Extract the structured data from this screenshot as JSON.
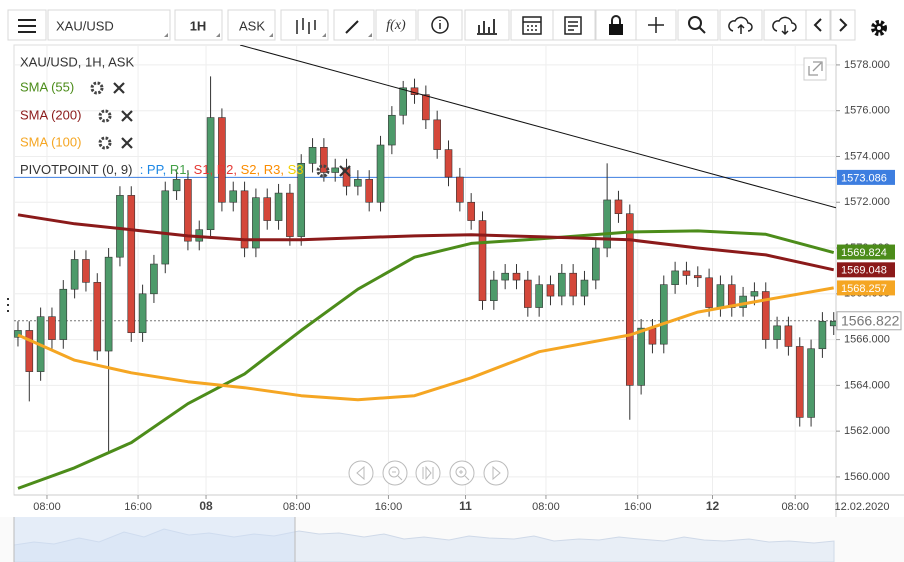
{
  "toolbar": {
    "symbol": "XAU/USD",
    "interval": "1H",
    "price_side": "ASK",
    "fx": "f(x)"
  },
  "legend": {
    "header": "XAU/USD, 1H, ASK",
    "pivot": "PIVOTPOINT (0, 9)",
    "pivot_levels": [
      {
        "text": ": PP,",
        "color": "#1e88e5"
      },
      {
        "text": " R1,",
        "color": "#43a047"
      },
      {
        "text": " S1,",
        "color": "#e53935"
      },
      {
        "text": " R2,",
        "color": "#e53935"
      },
      {
        "text": " S2,",
        "color": "#fb8c00"
      },
      {
        "text": " R3,",
        "color": "#fb8c00"
      },
      {
        "text": " S3",
        "color": "#f2d000"
      }
    ]
  },
  "chart_data": {
    "type": "candlestick",
    "up_color": "#4d9a6a",
    "down_color": "#d4473a",
    "x": [
      0,
      1,
      2,
      3,
      4,
      5,
      6,
      7,
      8,
      9,
      10,
      11,
      12,
      13,
      14,
      15,
      16,
      17,
      18,
      19,
      20,
      21,
      22,
      23,
      24,
      25,
      26,
      27,
      28,
      29,
      30,
      31,
      32,
      33,
      34,
      35,
      36,
      37,
      38,
      39,
      40,
      41,
      42,
      43,
      44,
      45,
      46,
      47,
      48,
      49,
      50,
      51,
      52,
      53,
      54,
      55,
      56,
      57,
      58,
      59,
      60,
      61,
      62,
      63,
      64,
      65,
      66,
      67,
      68,
      69,
      70,
      71,
      72
    ],
    "open": [
      1566.1,
      1566.4,
      1564.6,
      1567.0,
      1566.0,
      1568.2,
      1569.5,
      1568.5,
      1565.5,
      1569.6,
      1572.3,
      1566.3,
      1568.0,
      1569.3,
      1572.5,
      1573.0,
      1570.3,
      1570.8,
      1575.7,
      1572.0,
      1572.5,
      1570.0,
      1572.2,
      1571.2,
      1572.4,
      1570.5,
      1573.7,
      1574.4,
      1573.3,
      1573.5,
      1572.7,
      1573.0,
      1572.0,
      1574.5,
      1575.8,
      1577.0,
      1576.7,
      1575.6,
      1574.3,
      1573.1,
      1572.0,
      1571.2,
      1567.7,
      1568.6,
      1568.9,
      1568.6,
      1567.4,
      1568.4,
      1567.9,
      1568.9,
      1567.9,
      1568.6,
      1570.0,
      1572.1,
      1571.5,
      1564.0,
      1566.5,
      1565.8,
      1568.4,
      1569.0,
      1568.8,
      1568.7,
      1567.4,
      1568.4,
      1567.4,
      1567.9,
      1568.1,
      1566.0,
      1566.6,
      1565.7,
      1562.6,
      1565.6,
      1566.6
    ],
    "high": [
      1566.8,
      1566.8,
      1567.4,
      1567.4,
      1568.6,
      1569.9,
      1569.9,
      1568.9,
      1570.0,
      1572.7,
      1572.7,
      1568.4,
      1569.7,
      1572.9,
      1573.4,
      1573.4,
      1571.2,
      1577.5,
      1576.1,
      1572.9,
      1572.9,
      1572.6,
      1572.6,
      1572.8,
      1572.8,
      1574.1,
      1574.8,
      1574.8,
      1573.9,
      1573.9,
      1573.4,
      1573.4,
      1574.9,
      1576.2,
      1577.3,
      1577.4,
      1577.1,
      1576.0,
      1574.7,
      1573.5,
      1572.4,
      1571.6,
      1569.0,
      1569.3,
      1569.3,
      1569.0,
      1568.8,
      1568.8,
      1569.3,
      1569.3,
      1569.0,
      1570.4,
      1573.7,
      1572.5,
      1571.9,
      1566.9,
      1566.9,
      1568.8,
      1569.4,
      1569.4,
      1569.2,
      1569.1,
      1568.8,
      1568.8,
      1568.3,
      1568.5,
      1568.5,
      1567.0,
      1567.0,
      1566.1,
      1566.0,
      1567.2,
      1567.2
    ],
    "low": [
      1565.7,
      1563.3,
      1564.2,
      1565.6,
      1565.6,
      1567.8,
      1568.1,
      1565.1,
      1561.0,
      1569.2,
      1565.9,
      1565.9,
      1567.6,
      1568.9,
      1572.1,
      1569.9,
      1569.9,
      1570.4,
      1571.6,
      1571.6,
      1569.6,
      1569.6,
      1570.8,
      1570.8,
      1570.1,
      1570.1,
      1573.3,
      1572.9,
      1572.9,
      1572.3,
      1572.3,
      1571.6,
      1571.6,
      1574.1,
      1575.4,
      1576.3,
      1575.2,
      1573.9,
      1572.7,
      1571.6,
      1570.8,
      1567.3,
      1567.3,
      1568.2,
      1568.2,
      1567.0,
      1567.0,
      1567.5,
      1567.5,
      1567.5,
      1567.5,
      1568.2,
      1569.6,
      1571.1,
      1562.5,
      1563.6,
      1565.4,
      1565.4,
      1568.0,
      1568.4,
      1568.3,
      1567.0,
      1567.0,
      1567.0,
      1567.0,
      1567.5,
      1565.6,
      1565.6,
      1565.3,
      1562.2,
      1562.2,
      1565.2,
      1566.2
    ],
    "close": [
      1566.4,
      1564.6,
      1567.0,
      1566.0,
      1568.2,
      1569.5,
      1568.5,
      1565.5,
      1569.6,
      1572.3,
      1566.3,
      1568.0,
      1569.3,
      1572.5,
      1573.0,
      1570.3,
      1570.8,
      1575.7,
      1572.0,
      1572.5,
      1570.0,
      1572.2,
      1571.2,
      1572.4,
      1570.5,
      1573.7,
      1574.4,
      1573.3,
      1573.5,
      1572.7,
      1573.0,
      1572.0,
      1574.5,
      1575.8,
      1577.0,
      1576.7,
      1575.6,
      1574.3,
      1573.1,
      1572.0,
      1571.2,
      1567.7,
      1568.6,
      1568.9,
      1568.6,
      1567.4,
      1568.4,
      1567.9,
      1568.9,
      1567.9,
      1568.6,
      1570.0,
      1572.1,
      1571.5,
      1564.0,
      1566.5,
      1565.8,
      1568.4,
      1569.0,
      1568.8,
      1568.7,
      1567.4,
      1568.4,
      1567.4,
      1567.9,
      1568.1,
      1566.0,
      1566.6,
      1565.7,
      1562.6,
      1565.6,
      1566.8,
      1566.8
    ],
    "series": [
      {
        "name": "SMA (55)",
        "color": "#4c8c1a",
        "x": [
          0,
          5,
          10,
          15,
          20,
          25,
          30,
          35,
          40,
          46,
          54,
          60,
          66,
          72
        ],
        "values": [
          1559.5,
          1560.4,
          1561.5,
          1563.2,
          1564.5,
          1566.4,
          1568.2,
          1569.6,
          1570.2,
          1570.4,
          1570.7,
          1570.75,
          1570.6,
          1569.8
        ]
      },
      {
        "name": "SMA (200)",
        "color": "#8b1a1a",
        "x": [
          0,
          5,
          10,
          15,
          20,
          25,
          30,
          35,
          40,
          46,
          54,
          60,
          66,
          72
        ],
        "values": [
          1571.45,
          1571.06,
          1570.8,
          1570.53,
          1570.36,
          1570.36,
          1570.45,
          1570.53,
          1570.58,
          1570.49,
          1570.36,
          1570.0,
          1569.7,
          1569.05
        ]
      },
      {
        "name": "SMA (100)",
        "color": "#f5a623",
        "x": [
          0,
          5,
          10,
          15,
          20,
          25,
          30,
          35,
          40,
          46,
          54,
          60,
          66,
          72
        ],
        "values": [
          1566.2,
          1565.1,
          1564.55,
          1564.16,
          1563.9,
          1563.55,
          1563.37,
          1563.55,
          1564.33,
          1565.47,
          1566.2,
          1567.2,
          1567.74,
          1568.26
        ]
      }
    ],
    "trendline": {
      "x": [
        19.6,
        72.2
      ],
      "y": [
        1578.87,
        1571.76
      ]
    },
    "price_labels": [
      {
        "value": 1573.086,
        "color": "#3d7ee0",
        "line": "solid"
      },
      {
        "value": 1569.824,
        "color": "#4c8c1a"
      },
      {
        "value": 1569.048,
        "color": "#8b1a1a"
      },
      {
        "value": 1568.257,
        "color": "#f5a623"
      },
      {
        "value": 1566.822,
        "color": "#777777",
        "line": "dotted"
      }
    ],
    "xlim": [
      -0.35,
      72.2
    ],
    "ylim": [
      1559.21,
      1578.87
    ],
    "xticks": [
      {
        "value": 2.56,
        "label": "08:00"
      },
      {
        "value": 10.6,
        "label": "16:00"
      },
      {
        "value": 16.6,
        "label": "08"
      },
      {
        "value": 24.6,
        "label": "08:00"
      },
      {
        "value": 32.7,
        "label": "16:00"
      },
      {
        "value": 39.5,
        "label": "11"
      },
      {
        "value": 46.6,
        "label": "08:00"
      },
      {
        "value": 54.7,
        "label": "16:00"
      },
      {
        "value": 61.3,
        "label": "12"
      },
      {
        "value": 68.6,
        "label": "08:00"
      }
    ],
    "yticks": [
      {
        "value": 1560,
        "label": "1560.000"
      },
      {
        "value": 1562,
        "label": "1562.000"
      },
      {
        "value": 1564,
        "label": "1564.000"
      },
      {
        "value": 1566,
        "label": "1566.000"
      },
      {
        "value": 1568,
        "label": "1568.000"
      },
      {
        "value": 1570,
        "label": "1570.000"
      },
      {
        "value": 1572,
        "label": "1572.000"
      },
      {
        "value": 1574,
        "label": "1574.000"
      },
      {
        "value": 1576,
        "label": "1576.000"
      },
      {
        "value": 1578,
        "label": "1578.000"
      }
    ],
    "date_label": "12.02.2020",
    "grid": true
  }
}
